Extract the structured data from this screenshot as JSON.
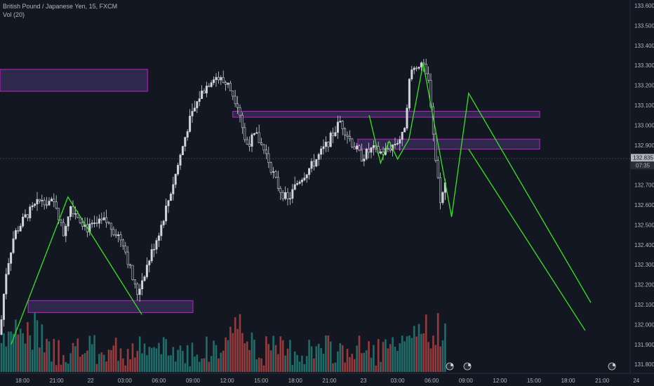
{
  "header": {
    "title": "British Pound / Japanese Yen, 15, FXCM",
    "volume_label": "Vol (20)"
  },
  "colors": {
    "background": "#131722",
    "up": "#26a69a",
    "down": "#ef5350",
    "candle": "#d1d4dc",
    "drawing": "#33e61a",
    "zone_border": "#c020c8",
    "zone_fill": "#3a2f5c",
    "crosshair": "#5d606b"
  },
  "chart_data": {
    "type": "candlestick",
    "symbol": "GBPJPY",
    "interval": "15",
    "ylim": [
      131.76,
      133.63
    ],
    "y_ticks": [
      "133.600",
      "133.500",
      "133.400",
      "133.300",
      "133.200",
      "133.100",
      "133.000",
      "132.900",
      "132.800",
      "132.700",
      "132.600",
      "132.500",
      "132.400",
      "132.300",
      "132.200",
      "132.100",
      "132.000",
      "131.900",
      "131.800"
    ],
    "x_ticks": [
      "18:00",
      "21:00",
      "22",
      "03:00",
      "06:00",
      "09:00",
      "12:00",
      "15:00",
      "18:00",
      "21:00",
      "23",
      "03:00",
      "06:00",
      "09:00",
      "12:00",
      "15:00",
      "18:00",
      "21:00",
      "24"
    ],
    "current_price": "132.835",
    "countdown": "07:35",
    "zones": [
      {
        "from_time": "start",
        "to_time": "22 05:00",
        "top": 133.28,
        "bottom": 133.17
      },
      {
        "from_time": "21 18:30",
        "to_time": "22 09:00",
        "top": 132.12,
        "bottom": 132.06
      },
      {
        "from_time": "22 12:30",
        "to_time": "23 15:30",
        "top": 133.07,
        "bottom": 133.04
      },
      {
        "from_time": "22 23:30",
        "to_time": "23 15:30",
        "top": 132.93,
        "bottom": 132.88
      }
    ],
    "drawn_path_1": [
      {
        "t": "21 17:00",
        "y": 131.9
      },
      {
        "t": "21 22:00",
        "y": 132.64
      },
      {
        "t": "22 04:30",
        "y": 132.05
      },
      {
        "t": "22 04:30",
        "y": 132.05
      }
    ],
    "drawn_path_2": [
      {
        "t": "23 00:30",
        "y": 133.05
      },
      {
        "t": "23 01:30",
        "y": 132.81
      },
      {
        "t": "23 02:15",
        "y": 132.92
      },
      {
        "t": "23 03:00",
        "y": 132.83
      },
      {
        "t": "23 04:00",
        "y": 132.93
      },
      {
        "t": "23 05:15",
        "y": 133.31
      },
      {
        "t": "23 07:45",
        "y": 132.54
      },
      {
        "t": "23 09:15",
        "y": 133.16
      },
      {
        "t": "23 20:00",
        "y": 132.11
      }
    ],
    "drawn_path_3": [
      {
        "t": "23 09:15",
        "y": 132.88
      },
      {
        "t": "23 19:30",
        "y": 131.97
      }
    ],
    "annotations": [
      "econ-event",
      "econ-event",
      "econ-event"
    ]
  }
}
